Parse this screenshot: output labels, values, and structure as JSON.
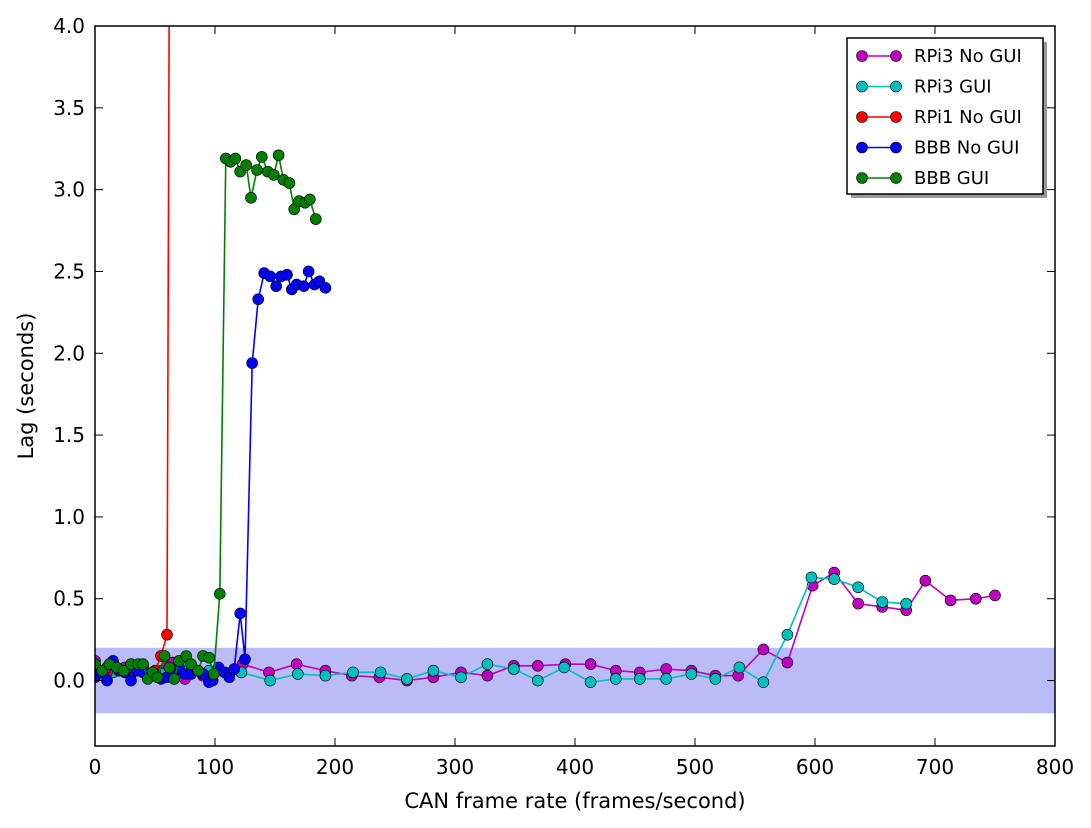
{
  "chart_data": {
    "type": "line",
    "xlabel": "CAN frame rate (frames/second)",
    "ylabel": "Lag (seconds)",
    "xlim": [
      0,
      800
    ],
    "ylim": [
      -0.4,
      4.0
    ],
    "xticks": [
      0,
      100,
      200,
      300,
      400,
      500,
      600,
      700,
      800
    ],
    "yticks": [
      0.0,
      0.5,
      1.0,
      1.5,
      2.0,
      2.5,
      3.0,
      3.5,
      4.0
    ],
    "xtick_labels": [
      "0",
      "100",
      "200",
      "300",
      "400",
      "500",
      "600",
      "700",
      "800"
    ],
    "ytick_labels": [
      "0.0",
      "0.5",
      "1.0",
      "1.5",
      "2.0",
      "2.5",
      "3.0",
      "3.5",
      "4.0"
    ],
    "grid": false,
    "legend_position": "top-right",
    "band": {
      "y0": -0.2,
      "y1": 0.2,
      "color": "#bbbbf8"
    },
    "series": [
      {
        "name": "RPi3 No GUI",
        "color": "#bf00bf",
        "points": [
          [
            0,
            0.12
          ],
          [
            5,
            0.05
          ],
          [
            10,
            0.08
          ],
          [
            15,
            0.11
          ],
          [
            20,
            0.06
          ],
          [
            25,
            0.08
          ],
          [
            30,
            0.04
          ],
          [
            35,
            0.07
          ],
          [
            40,
            0.09
          ],
          [
            45,
            0.03
          ],
          [
            50,
            0.05
          ],
          [
            55,
            0.06
          ],
          [
            60,
            0.09
          ],
          [
            65,
            0.11
          ],
          [
            70,
            0.07
          ],
          [
            75,
            0.01
          ],
          [
            80,
            0.1
          ],
          [
            85,
            0.06
          ],
          [
            90,
            0.03
          ],
          [
            95,
            0.0
          ],
          [
            100,
            0.05
          ],
          [
            123,
            0.1
          ],
          [
            145,
            0.05
          ],
          [
            168,
            0.1
          ],
          [
            192,
            0.06
          ],
          [
            214,
            0.03
          ],
          [
            237,
            0.02
          ],
          [
            260,
            0.0
          ],
          [
            282,
            0.02
          ],
          [
            305,
            0.05
          ],
          [
            327,
            0.03
          ],
          [
            349,
            0.09
          ],
          [
            369,
            0.09
          ],
          [
            392,
            0.1
          ],
          [
            413,
            0.1
          ],
          [
            434,
            0.06
          ],
          [
            454,
            0.05
          ],
          [
            476,
            0.07
          ],
          [
            497,
            0.06
          ],
          [
            517,
            0.03
          ],
          [
            536,
            0.03
          ],
          [
            557,
            0.19
          ],
          [
            577,
            0.11
          ],
          [
            598,
            0.58
          ],
          [
            616,
            0.66
          ],
          [
            636,
            0.47
          ],
          [
            656,
            0.45
          ],
          [
            676,
            0.43
          ],
          [
            692,
            0.61
          ],
          [
            713,
            0.49
          ],
          [
            734,
            0.5
          ],
          [
            750,
            0.52
          ]
        ]
      },
      {
        "name": "RPi3 GUI",
        "color": "#00bfbf",
        "points": [
          [
            5,
            0.06
          ],
          [
            15,
            0.05
          ],
          [
            30,
            0.08
          ],
          [
            55,
            0.04
          ],
          [
            75,
            0.08
          ],
          [
            95,
            0.06
          ],
          [
            122,
            0.05
          ],
          [
            146,
            0.0
          ],
          [
            169,
            0.04
          ],
          [
            192,
            0.03
          ],
          [
            215,
            0.05
          ],
          [
            238,
            0.05
          ],
          [
            260,
            0.01
          ],
          [
            282,
            0.06
          ],
          [
            305,
            0.02
          ],
          [
            327,
            0.1
          ],
          [
            349,
            0.07
          ],
          [
            369,
            0.0
          ],
          [
            391,
            0.08
          ],
          [
            413,
            -0.01
          ],
          [
            434,
            0.01
          ],
          [
            454,
            0.01
          ],
          [
            476,
            0.01
          ],
          [
            497,
            0.04
          ],
          [
            517,
            0.01
          ],
          [
            537,
            0.08
          ],
          [
            557,
            -0.01
          ],
          [
            577,
            0.28
          ],
          [
            597,
            0.63
          ],
          [
            616,
            0.62
          ],
          [
            636,
            0.57
          ],
          [
            656,
            0.48
          ],
          [
            676,
            0.47
          ]
        ]
      },
      {
        "name": "RPi1 No GUI",
        "color": "#ff0000",
        "points": [
          [
            0,
            0.1
          ],
          [
            10,
            0.05
          ],
          [
            20,
            0.07
          ],
          [
            30,
            0.1
          ],
          [
            40,
            0.08
          ],
          [
            50,
            0.06
          ],
          [
            55,
            0.15
          ],
          [
            60,
            0.28
          ],
          [
            62,
            4.5
          ]
        ]
      },
      {
        "name": "BBB No GUI",
        "color": "#0000ff",
        "points": [
          [
            0,
            0.02
          ],
          [
            5,
            0.05
          ],
          [
            10,
            0.0
          ],
          [
            15,
            0.12
          ],
          [
            20,
            0.06
          ],
          [
            25,
            0.05
          ],
          [
            30,
            0.0
          ],
          [
            35,
            0.06
          ],
          [
            40,
            0.05
          ],
          [
            45,
            0.02
          ],
          [
            50,
            0.04
          ],
          [
            55,
            0.01
          ],
          [
            60,
            0.02
          ],
          [
            65,
            0.05
          ],
          [
            70,
            0.08
          ],
          [
            75,
            0.04
          ],
          [
            80,
            0.04
          ],
          [
            85,
            0.06
          ],
          [
            90,
            0.04
          ],
          [
            95,
            -0.01
          ],
          [
            98,
            0.0
          ],
          [
            103,
            0.08
          ],
          [
            108,
            0.05
          ],
          [
            112,
            0.02
          ],
          [
            116,
            0.07
          ],
          [
            121,
            0.41
          ],
          [
            125,
            0.13
          ],
          [
            131,
            1.94
          ],
          [
            136,
            2.33
          ],
          [
            141,
            2.49
          ],
          [
            146,
            2.47
          ],
          [
            151,
            2.41
          ],
          [
            155,
            2.47
          ],
          [
            160,
            2.48
          ],
          [
            164,
            2.39
          ],
          [
            168,
            2.42
          ],
          [
            174,
            2.41
          ],
          [
            178,
            2.5
          ],
          [
            183,
            2.42
          ],
          [
            187,
            2.44
          ],
          [
            192,
            2.4
          ]
        ]
      },
      {
        "name": "BBB GUI",
        "color": "#008000",
        "points": [
          [
            0,
            0.1
          ],
          [
            6,
            0.06
          ],
          [
            12,
            0.1
          ],
          [
            18,
            0.08
          ],
          [
            24,
            0.06
          ],
          [
            30,
            0.1
          ],
          [
            36,
            0.1
          ],
          [
            40,
            0.1
          ],
          [
            44,
            0.01
          ],
          [
            48,
            0.05
          ],
          [
            52,
            0.02
          ],
          [
            58,
            0.15
          ],
          [
            62,
            0.08
          ],
          [
            66,
            0.01
          ],
          [
            70,
            0.12
          ],
          [
            76,
            0.15
          ],
          [
            80,
            0.1
          ],
          [
            86,
            0.06
          ],
          [
            90,
            0.15
          ],
          [
            95,
            0.14
          ],
          [
            99,
            0.04
          ],
          [
            104,
            0.53
          ],
          [
            109,
            3.19
          ],
          [
            113,
            3.17
          ],
          [
            117,
            3.19
          ],
          [
            121,
            3.11
          ],
          [
            126,
            3.15
          ],
          [
            130,
            2.95
          ],
          [
            135,
            3.12
          ],
          [
            139,
            3.2
          ],
          [
            144,
            3.11
          ],
          [
            149,
            3.09
          ],
          [
            153,
            3.21
          ],
          [
            157,
            3.06
          ],
          [
            162,
            3.04
          ],
          [
            166,
            2.88
          ],
          [
            170,
            2.93
          ],
          [
            175,
            2.92
          ],
          [
            179,
            2.94
          ],
          [
            184,
            2.82
          ]
        ]
      }
    ]
  }
}
